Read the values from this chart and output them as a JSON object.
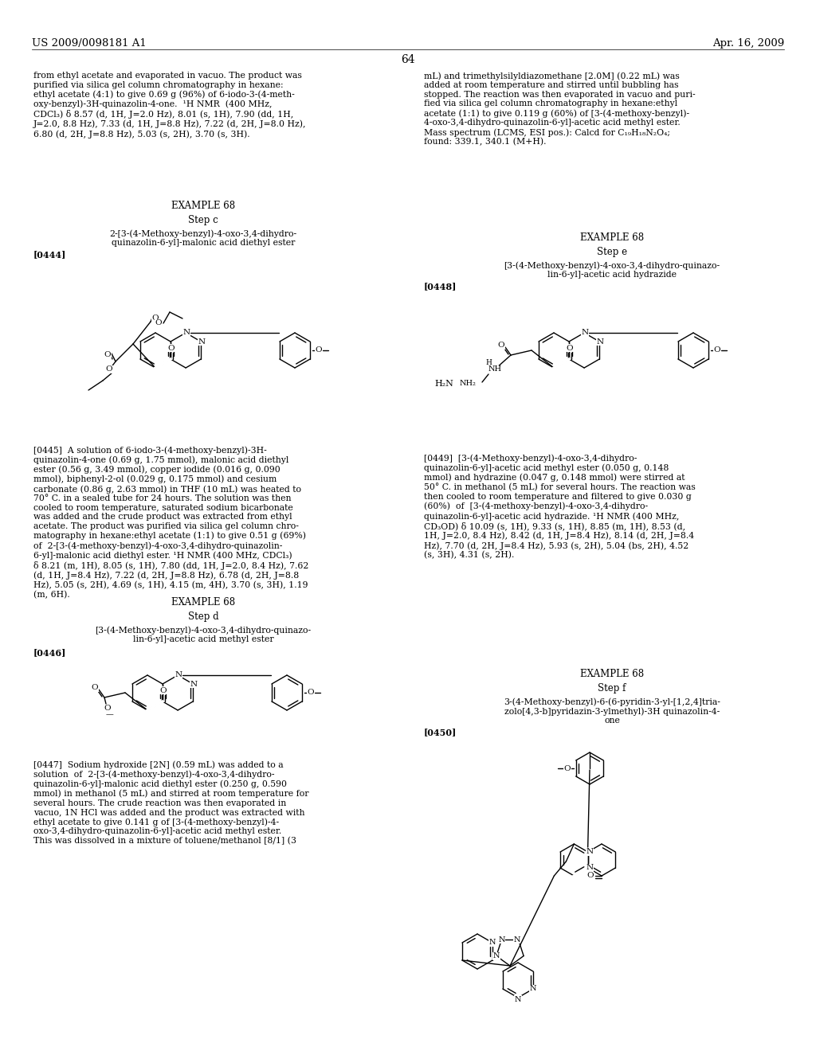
{
  "page_number": "64",
  "header_left": "US 2009/0098181 A1",
  "header_right": "Apr. 16, 2009",
  "bg": "#ffffff",
  "tc": "#000000",
  "col1_top": "from ethyl acetate and evaporated in vacuo. The product was\npurified via silica gel column chromatography in hexane:\nethyl acetate (4:1) to give 0.69 g (96%) of 6-iodo-3-(4-meth-\noxy-benzyl)-3H-quinazolin-4-one.  ¹H NMR  (400 MHz,\nCDCl₃) δ 8.57 (d, 1H, J=2.0 Hz), 8.01 (s, 1H), 7.90 (dd, 1H,\nJ=2.0, 8.8 Hz), 7.33 (d, 1H, J=8.8 Hz), 7.22 (d, 2H, J=8.0 Hz),\n6.80 (d, 2H, J=8.8 Hz), 5.03 (s, 2H), 3.70 (s, 3H).",
  "col2_top": "mL) and trimethylsilyldiazomethane [2.0M] (0.22 mL) was\nadded at room temperature and stirred until bubbling has\nstopped. The reaction was then evaporated in vacuo and puri-\nfied via silica gel column chromatography in hexane:ethyl\nacetate (1:1) to give 0.119 g (60%) of [3-(4-methoxy-benzyl)-\n4-oxo-3,4-dihydro-quinazolin-6-yl]-acetic acid methyl ester.\nMass spectrum (LCMS, ESI pos.): Calcd for C₁₉H₁₈N₂O₄;\nfound: 339.1, 340.1 (M+H).",
  "ex68c_title": "EXAMPLE 68",
  "ex68c_step": "Step c",
  "ex68c_name": "2-[3-(4-Methoxy-benzyl)-4-oxo-3,4-dihydro-\nquinazolin-6-yl]-malonic acid diethyl ester",
  "ex68c_ref": "[0444]",
  "para0445": "[0445]  A solution of 6-iodo-3-(4-methoxy-benzyl)-3H-\nquinazolin-4-one (0.69 g, 1.75 mmol), malonic acid diethyl\nester (0.56 g, 3.49 mmol), copper iodide (0.016 g, 0.090\nmmol), biphenyl-2-ol (0.029 g, 0.175 mmol) and cesium\ncarbonate (0.86 g, 2.63 mmol) in THF (10 mL) was heated to\n70° C. in a sealed tube for 24 hours. The solution was then\ncooled to room temperature, saturated sodium bicarbonate\nwas added and the crude product was extracted from ethyl\nacetate. The product was purified via silica gel column chro-\nmatography in hexane:ethyl acetate (1:1) to give 0.51 g (69%)\nof  2-[3-(4-methoxy-benzyl)-4-oxo-3,4-dihydro-quinazolin-\n6-yl]-malonic acid diethyl ester. ¹H NMR (400 MHz, CDCl₃)\nδ 8.21 (m, 1H), 8.05 (s, 1H), 7.80 (dd, 1H, J=2.0, 8.4 Hz), 7.62\n(d, 1H, J=8.4 Hz), 7.22 (d, 2H, J=8.8 Hz), 6.78 (d, 2H, J=8.8\nHz), 5.05 (s, 2H), 4.69 (s, 1H), 4.15 (m, 4H), 3.70 (s, 3H), 1.19\n(m, 6H).",
  "ex68d_title": "EXAMPLE 68",
  "ex68d_step": "Step d",
  "ex68d_name": "[3-(4-Methoxy-benzyl)-4-oxo-3,4-dihydro-quinazo-\nlin-6-yl]-acetic acid methyl ester",
  "ex68d_ref": "[0446]",
  "para0447": "[0447]  Sodium hydroxide [2N] (0.59 mL) was added to a\nsolution  of  2-[3-(4-methoxy-benzyl)-4-oxo-3,4-dihydro-\nquinazolin-6-yl]-malonic acid diethyl ester (0.250 g, 0.590\nmmol) in methanol (5 mL) and stirred at room temperature for\nseveral hours. The crude reaction was then evaporated in\nvacuo, 1N HCl was added and the product was extracted with\nethyl acetate to give 0.141 g of [3-(4-methoxy-benzyl)-4-\noxo-3,4-dihydro-quinazolin-6-yl]-acetic acid methyl ester.\nThis was dissolved in a mixture of toluene/methanol [8/1] (3",
  "ex68e_title": "EXAMPLE 68",
  "ex68e_step": "Step e",
  "ex68e_name": "[3-(4-Methoxy-benzyl)-4-oxo-3,4-dihydro-quinazo-\nlin-6-yl]-acetic acid hydrazide",
  "ex68e_ref": "[0448]",
  "para0449": "[0449]  [3-(4-Methoxy-benzyl)-4-oxo-3,4-dihydro-\nquinazolin-6-yl]-acetic acid methyl ester (0.050 g, 0.148\nmmol) and hydrazine (0.047 g, 0.148 mmol) were stirred at\n50° C. in methanol (5 mL) for several hours. The reaction was\nthen cooled to room temperature and filtered to give 0.030 g\n(60%)  of  [3-(4-methoxy-benzyl)-4-oxo-3,4-dihydro-\nquinazolin-6-yl]-acetic acid hydrazide. ¹H NMR (400 MHz,\nCD₃OD) δ 10.09 (s, 1H), 9.33 (s, 1H), 8.85 (m, 1H), 8.53 (d,\n1H, J=2.0, 8.4 Hz), 8.42 (d, 1H, J=8.4 Hz), 8.14 (d, 2H, J=8.4\nHz), 7.70 (d, 2H, J=8.4 Hz), 5.93 (s, 2H), 5.04 (bs, 2H), 4.52\n(s, 3H), 4.31 (s, 2H).",
  "ex68f_title": "EXAMPLE 68",
  "ex68f_step": "Step f",
  "ex68f_name": "3-(4-Methoxy-benzyl)-6-(6-pyridin-3-yl-[1,2,4]tria-\nzolo[4,3-b]pyridazin-3-ylmethyl)-3H quinazolin-4-\none",
  "ex68f_ref": "[0450]"
}
